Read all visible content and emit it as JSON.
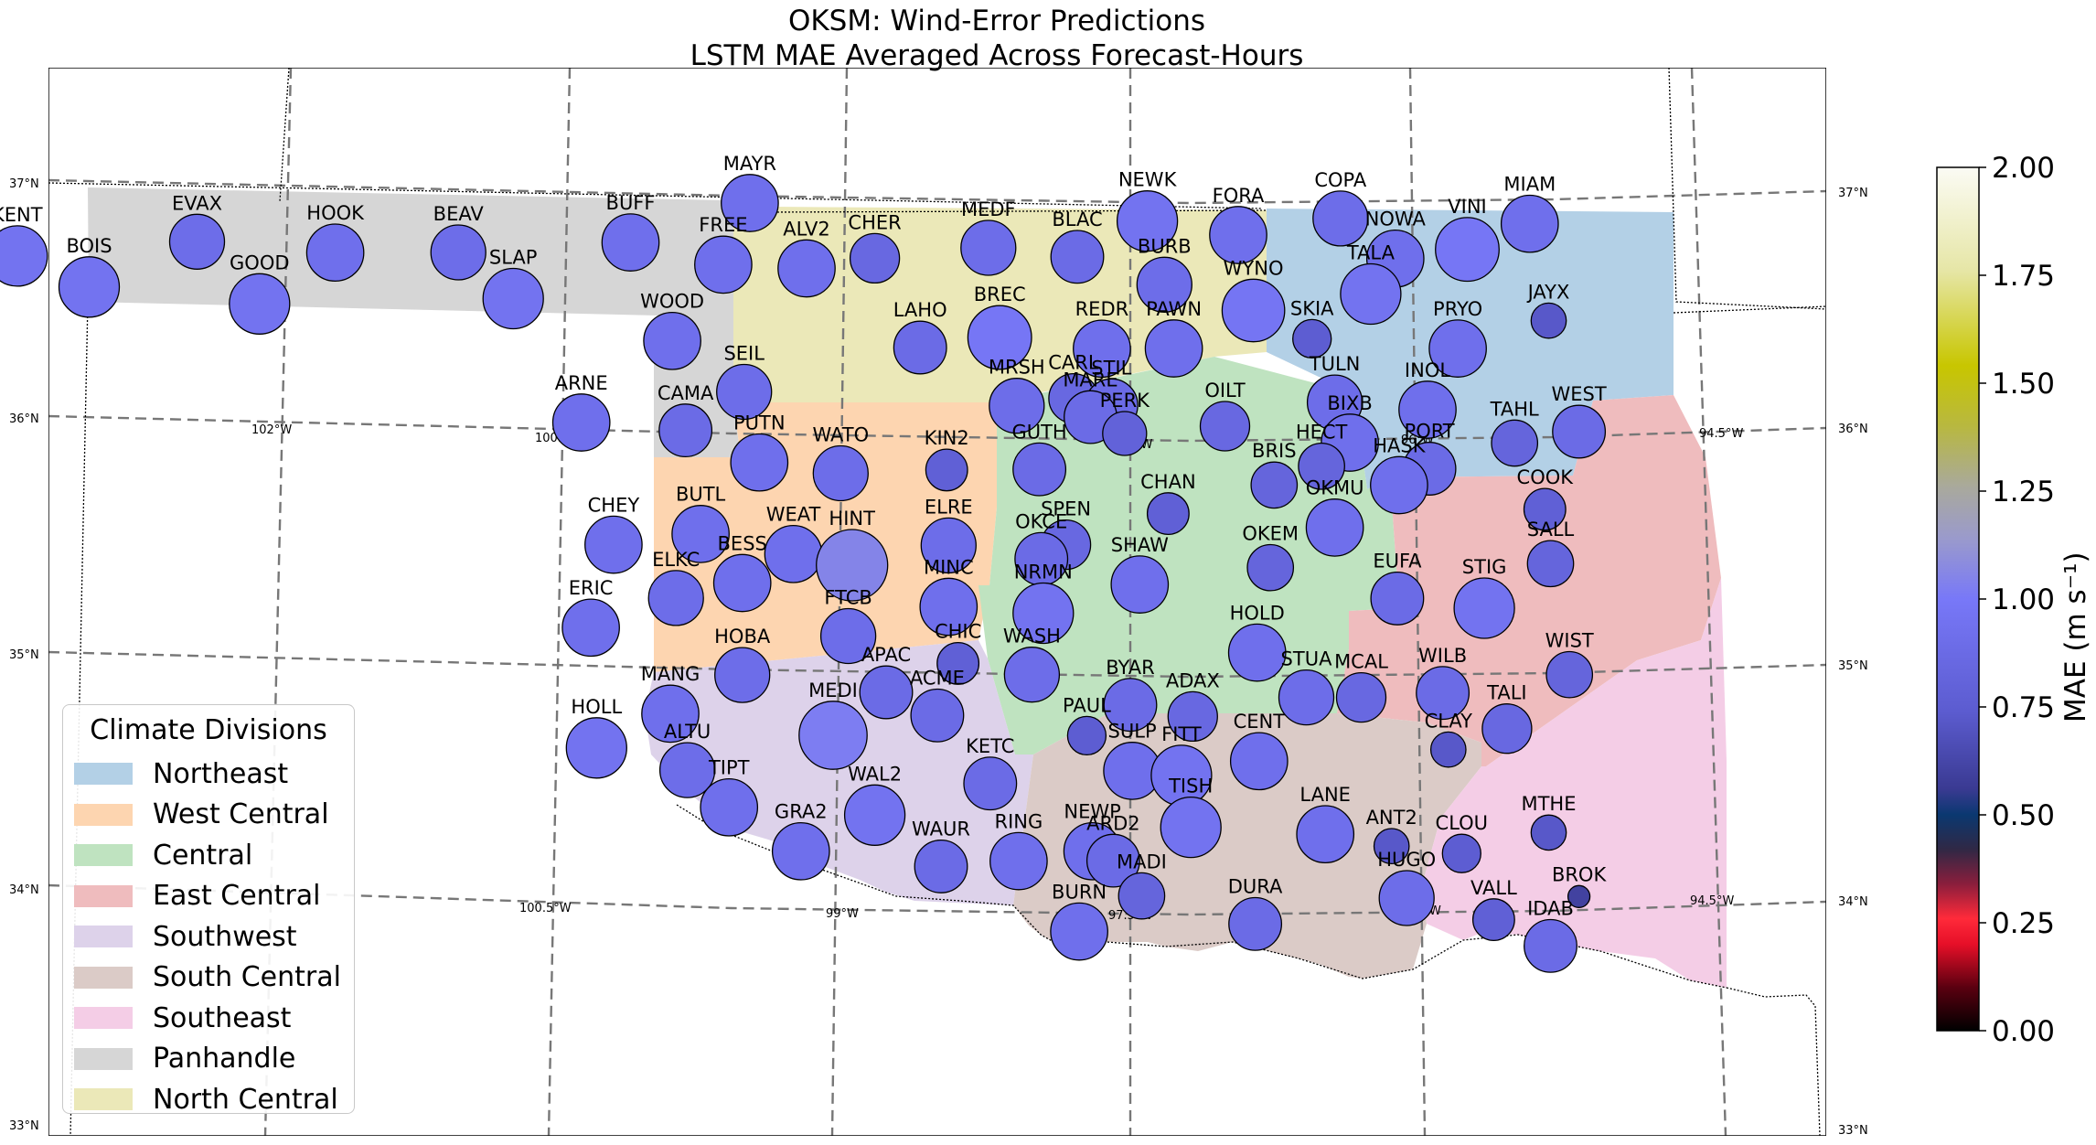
{
  "title": {
    "line1": "OKSM: Wind-Error Predictions",
    "line2": "LSTM MAE Averaged Across Forecast-Hours"
  },
  "legend": {
    "title": "Climate Divisions",
    "items": [
      {
        "label": "Northeast",
        "color": "#b3d0e6"
      },
      {
        "label": "West Central",
        "color": "#fdd5b0"
      },
      {
        "label": "Central",
        "color": "#bfe3c0"
      },
      {
        "label": "East Central",
        "color": "#efbcbe"
      },
      {
        "label": "Southwest",
        "color": "#ddd2ea"
      },
      {
        "label": "South Central",
        "color": "#dbcbc7"
      },
      {
        "label": "Southeast",
        "color": "#f4cde6"
      },
      {
        "label": "Panhandle",
        "color": "#d6d6d6"
      },
      {
        "label": "North Central",
        "color": "#ebe8b8"
      }
    ]
  },
  "colorbar": {
    "label": "MAE (m s⁻¹)",
    "min": 0.0,
    "max": 2.0,
    "ticks": [
      "0.00",
      "0.25",
      "0.50",
      "0.75",
      "1.00",
      "1.25",
      "1.50",
      "1.75",
      "2.00"
    ]
  },
  "grid_labels": {
    "lat": [
      "37°N",
      "36°N",
      "35°N",
      "34°N",
      "33°N"
    ],
    "lon_top": [
      "102°W",
      "100.5°W",
      "97.5°W",
      "96°W",
      "94.5°W"
    ],
    "lon_bottom": [
      "100.5°W",
      "99°W",
      "97.5°W",
      "96°W",
      "94.5°W"
    ]
  },
  "stations": [
    {
      "id": "KENT",
      "lon": -102.88,
      "lat": 36.83,
      "mae": 0.95
    },
    {
      "id": "BOIS",
      "lon": -102.5,
      "lat": 36.69,
      "mae": 0.95
    },
    {
      "id": "EVAX",
      "lon": -101.93,
      "lat": 36.87,
      "mae": 0.9
    },
    {
      "id": "GOOD",
      "lon": -101.6,
      "lat": 36.6,
      "mae": 0.95
    },
    {
      "id": "HOOK",
      "lon": -101.2,
      "lat": 36.81,
      "mae": 0.92
    },
    {
      "id": "BEAV",
      "lon": -100.55,
      "lat": 36.8,
      "mae": 0.9
    },
    {
      "id": "SLAP",
      "lon": -100.26,
      "lat": 36.6,
      "mae": 0.95
    },
    {
      "id": "BUFF",
      "lon": -99.64,
      "lat": 36.83,
      "mae": 0.92
    },
    {
      "id": "MAYR",
      "lon": -99.01,
      "lat": 36.99,
      "mae": 0.92
    },
    {
      "id": "FREE",
      "lon": -99.15,
      "lat": 36.73,
      "mae": 0.92
    },
    {
      "id": "ALV2",
      "lon": -98.71,
      "lat": 36.71,
      "mae": 0.92
    },
    {
      "id": "CHER",
      "lon": -98.35,
      "lat": 36.75,
      "mae": 0.85
    },
    {
      "id": "MEDF",
      "lon": -97.75,
      "lat": 36.79,
      "mae": 0.9
    },
    {
      "id": "BLAC",
      "lon": -97.28,
      "lat": 36.75,
      "mae": 0.88
    },
    {
      "id": "NEWK",
      "lon": -96.91,
      "lat": 36.9,
      "mae": 0.95
    },
    {
      "id": "FORA",
      "lon": -96.43,
      "lat": 36.84,
      "mae": 0.92
    },
    {
      "id": "COPA",
      "lon": -95.89,
      "lat": 36.91,
      "mae": 0.9
    },
    {
      "id": "MIAM",
      "lon": -94.89,
      "lat": 36.89,
      "mae": 0.92
    },
    {
      "id": "NOWA",
      "lon": -95.6,
      "lat": 36.74,
      "mae": 0.92
    },
    {
      "id": "VINI",
      "lon": -95.22,
      "lat": 36.78,
      "mae": 0.98
    },
    {
      "id": "BURB",
      "lon": -96.82,
      "lat": 36.63,
      "mae": 0.9
    },
    {
      "id": "TALA",
      "lon": -95.73,
      "lat": 36.59,
      "mae": 0.95
    },
    {
      "id": "WYNO",
      "lon": -96.35,
      "lat": 36.52,
      "mae": 0.97
    },
    {
      "id": "JAYX",
      "lon": -94.79,
      "lat": 36.48,
      "mae": 0.72
    },
    {
      "id": "SKIA",
      "lon": -96.04,
      "lat": 36.4,
      "mae": 0.75
    },
    {
      "id": "PRYO",
      "lon": -95.27,
      "lat": 36.36,
      "mae": 0.92
    },
    {
      "id": "WOOD",
      "lon": -99.42,
      "lat": 36.41,
      "mae": 0.92
    },
    {
      "id": "LAHO",
      "lon": -98.11,
      "lat": 36.37,
      "mae": 0.88
    },
    {
      "id": "BREC",
      "lon": -97.69,
      "lat": 36.41,
      "mae": 0.98
    },
    {
      "id": "REDR",
      "lon": -97.15,
      "lat": 36.36,
      "mae": 0.92
    },
    {
      "id": "PAWN",
      "lon": -96.77,
      "lat": 36.36,
      "mae": 0.92
    },
    {
      "id": "SEIL",
      "lon": -99.04,
      "lat": 36.19,
      "mae": 0.9
    },
    {
      "id": "TULN",
      "lon": -95.92,
      "lat": 36.13,
      "mae": 0.9
    },
    {
      "id": "INOL",
      "lon": -95.43,
      "lat": 36.1,
      "mae": 0.92
    },
    {
      "id": "ARNE",
      "lon": -99.9,
      "lat": 36.07,
      "mae": 0.92
    },
    {
      "id": "CAMA",
      "lon": -99.35,
      "lat": 36.03,
      "mae": 0.88
    },
    {
      "id": "MRSH",
      "lon": -97.6,
      "lat": 36.12,
      "mae": 0.9
    },
    {
      "id": "CARL",
      "lon": -97.3,
      "lat": 36.15,
      "mae": 0.85
    },
    {
      "id": "STIL",
      "lon": -97.1,
      "lat": 36.12,
      "mae": 0.88
    },
    {
      "id": "MARE",
      "lon": -97.21,
      "lat": 36.07,
      "mae": 0.88
    },
    {
      "id": "PERK",
      "lon": -97.03,
      "lat": 36.0,
      "mae": 0.8
    },
    {
      "id": "OILT",
      "lon": -96.5,
      "lat": 36.03,
      "mae": 0.85
    },
    {
      "id": "BIXB",
      "lon": -95.84,
      "lat": 35.96,
      "mae": 0.92
    },
    {
      "id": "TAHL",
      "lon": -94.97,
      "lat": 35.96,
      "mae": 0.82
    },
    {
      "id": "WEST",
      "lon": -94.63,
      "lat": 36.01,
      "mae": 0.88
    },
    {
      "id": "PUTN",
      "lon": -98.96,
      "lat": 35.89,
      "mae": 0.92
    },
    {
      "id": "WATO",
      "lon": -98.53,
      "lat": 35.84,
      "mae": 0.9
    },
    {
      "id": "KIN2",
      "lon": -97.97,
      "lat": 35.85,
      "mae": 0.78
    },
    {
      "id": "GUTH",
      "lon": -97.48,
      "lat": 35.85,
      "mae": 0.88
    },
    {
      "id": "HECT",
      "lon": -95.99,
      "lat": 35.86,
      "mae": 0.82
    },
    {
      "id": "PORT",
      "lon": -95.42,
      "lat": 35.85,
      "mae": 0.88
    },
    {
      "id": "HASK",
      "lon": -95.58,
      "lat": 35.78,
      "mae": 0.92
    },
    {
      "id": "COOK",
      "lon": -94.81,
      "lat": 35.68,
      "mae": 0.78
    },
    {
      "id": "BRIS",
      "lon": -96.24,
      "lat": 35.78,
      "mae": 0.82
    },
    {
      "id": "CHAN",
      "lon": -96.8,
      "lat": 35.66,
      "mae": 0.78
    },
    {
      "id": "CHEY",
      "lon": -99.73,
      "lat": 35.55,
      "mae": 0.92
    },
    {
      "id": "BUTL",
      "lon": -99.27,
      "lat": 35.59,
      "mae": 0.92
    },
    {
      "id": "WEAT",
      "lon": -98.78,
      "lat": 35.5,
      "mae": 0.92
    },
    {
      "id": "HINT",
      "lon": -98.47,
      "lat": 35.45,
      "mae": 1.05
    },
    {
      "id": "ELRE",
      "lon": -97.96,
      "lat": 35.53,
      "mae": 0.9
    },
    {
      "id": "SPEN",
      "lon": -97.34,
      "lat": 35.53,
      "mae": 0.85
    },
    {
      "id": "OKCE",
      "lon": -97.47,
      "lat": 35.47,
      "mae": 0.88
    },
    {
      "id": "OKMU",
      "lon": -95.92,
      "lat": 35.6,
      "mae": 0.92
    },
    {
      "id": "SALL",
      "lon": -94.78,
      "lat": 35.45,
      "mae": 0.82
    },
    {
      "id": "BESS",
      "lon": -99.05,
      "lat": 35.38,
      "mae": 0.92
    },
    {
      "id": "ELKC",
      "lon": -99.4,
      "lat": 35.32,
      "mae": 0.9
    },
    {
      "id": "SHAW",
      "lon": -96.95,
      "lat": 35.36,
      "mae": 0.92
    },
    {
      "id": "OKEM",
      "lon": -96.26,
      "lat": 35.43,
      "mae": 0.82
    },
    {
      "id": "EUFA",
      "lon": -95.59,
      "lat": 35.3,
      "mae": 0.88
    },
    {
      "id": "STIG",
      "lon": -95.13,
      "lat": 35.26,
      "mae": 0.95
    },
    {
      "id": "ERIC",
      "lon": -99.85,
      "lat": 35.2,
      "mae": 0.92
    },
    {
      "id": "MINC",
      "lon": -97.96,
      "lat": 35.27,
      "mae": 0.92
    },
    {
      "id": "NRMN",
      "lon": -97.46,
      "lat": 35.24,
      "mae": 0.95
    },
    {
      "id": "FTCB",
      "lon": -98.49,
      "lat": 35.15,
      "mae": 0.9
    },
    {
      "id": "CHIC",
      "lon": -97.91,
      "lat": 35.03,
      "mae": 0.78
    },
    {
      "id": "HOLD",
      "lon": -96.33,
      "lat": 35.07,
      "mae": 0.92
    },
    {
      "id": "WIST",
      "lon": -94.68,
      "lat": 34.98,
      "mae": 0.82
    },
    {
      "id": "HOBA",
      "lon": -99.05,
      "lat": 34.99,
      "mae": 0.9
    },
    {
      "id": "WASH",
      "lon": -97.52,
      "lat": 34.98,
      "mae": 0.9
    },
    {
      "id": "APAC",
      "lon": -98.29,
      "lat": 34.91,
      "mae": 0.88
    },
    {
      "id": "WILB",
      "lon": -95.35,
      "lat": 34.9,
      "mae": 0.88
    },
    {
      "id": "STUA",
      "lon": -96.07,
      "lat": 34.88,
      "mae": 0.9
    },
    {
      "id": "MCAL",
      "lon": -95.78,
      "lat": 34.88,
      "mae": 0.85
    },
    {
      "id": "BYAR",
      "lon": -97.0,
      "lat": 34.85,
      "mae": 0.88
    },
    {
      "id": "ACME",
      "lon": -98.02,
      "lat": 34.81,
      "mae": 0.88
    },
    {
      "id": "ADAX",
      "lon": -96.67,
      "lat": 34.8,
      "mae": 0.85
    },
    {
      "id": "MANG",
      "lon": -99.43,
      "lat": 34.83,
      "mae": 0.92
    },
    {
      "id": "HOLL",
      "lon": -99.82,
      "lat": 34.69,
      "mae": 0.95
    },
    {
      "id": "MEDI",
      "lon": -98.57,
      "lat": 34.73,
      "mae": 1.02
    },
    {
      "id": "PAUL",
      "lon": -97.23,
      "lat": 34.72,
      "mae": 0.75
    },
    {
      "id": "CLAY",
      "lon": -95.32,
      "lat": 34.66,
      "mae": 0.72
    },
    {
      "id": "TALI",
      "lon": -95.01,
      "lat": 34.75,
      "mae": 0.85
    },
    {
      "id": "CENT",
      "lon": -96.32,
      "lat": 34.61,
      "mae": 0.92
    },
    {
      "id": "ALTU",
      "lon": -99.34,
      "lat": 34.59,
      "mae": 0.9
    },
    {
      "id": "SULP",
      "lon": -96.99,
      "lat": 34.57,
      "mae": 0.92
    },
    {
      "id": "FITT",
      "lon": -96.73,
      "lat": 34.55,
      "mae": 0.95
    },
    {
      "id": "KETC",
      "lon": -97.74,
      "lat": 34.52,
      "mae": 0.88
    },
    {
      "id": "TIPT",
      "lon": -99.12,
      "lat": 34.43,
      "mae": 0.92
    },
    {
      "id": "WAL2",
      "lon": -98.35,
      "lat": 34.39,
      "mae": 0.95
    },
    {
      "id": "TISH",
      "lon": -96.68,
      "lat": 34.33,
      "mae": 0.95
    },
    {
      "id": "LANE",
      "lon": -95.97,
      "lat": 34.3,
      "mae": 0.92
    },
    {
      "id": "MTHE",
      "lon": -94.79,
      "lat": 34.31,
      "mae": 0.72
    },
    {
      "id": "ANT2",
      "lon": -95.62,
      "lat": 34.25,
      "mae": 0.72
    },
    {
      "id": "CLOU",
      "lon": -95.25,
      "lat": 34.22,
      "mae": 0.75
    },
    {
      "id": "GRA2",
      "lon": -98.74,
      "lat": 34.24,
      "mae": 0.92
    },
    {
      "id": "NEWP",
      "lon": -97.2,
      "lat": 34.23,
      "mae": 0.92
    },
    {
      "id": "ARD2",
      "lon": -97.09,
      "lat": 34.19,
      "mae": 0.88
    },
    {
      "id": "RING",
      "lon": -97.59,
      "lat": 34.19,
      "mae": 0.92
    },
    {
      "id": "WAUR",
      "lon": -98.0,
      "lat": 34.17,
      "mae": 0.88
    },
    {
      "id": "BROK",
      "lon": -94.63,
      "lat": 34.04,
      "mae": 0.6
    },
    {
      "id": "MADI",
      "lon": -96.94,
      "lat": 34.04,
      "mae": 0.82
    },
    {
      "id": "HUGO",
      "lon": -95.54,
      "lat": 34.03,
      "mae": 0.9
    },
    {
      "id": "VALL",
      "lon": -95.08,
      "lat": 33.94,
      "mae": 0.78
    },
    {
      "id": "BURN",
      "lon": -97.27,
      "lat": 33.89,
      "mae": 0.92
    },
    {
      "id": "DURA",
      "lon": -96.34,
      "lat": 33.92,
      "mae": 0.88
    },
    {
      "id": "IDAB",
      "lon": -94.78,
      "lat": 33.83,
      "mae": 0.88
    }
  ]
}
